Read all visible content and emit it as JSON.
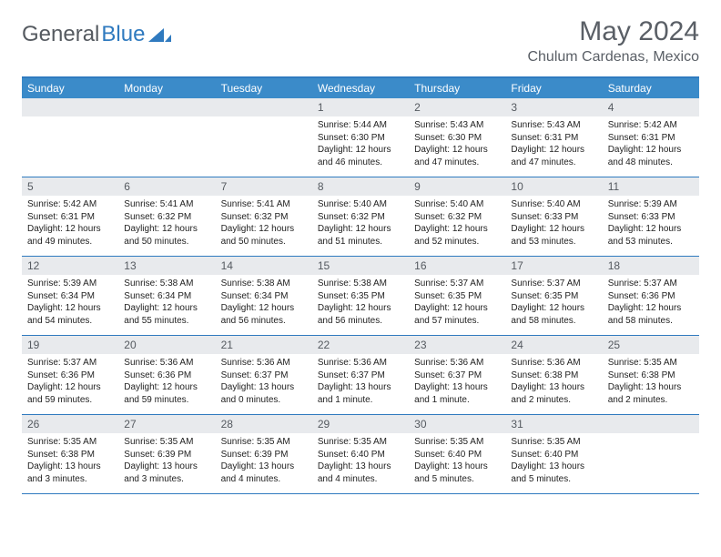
{
  "logo": {
    "word1": "General",
    "word2": "Blue"
  },
  "header": {
    "month_title": "May 2024",
    "location": "Chulum Cardenas, Mexico"
  },
  "colors": {
    "brand_blue": "#2f7abf",
    "header_bar": "#3b8bc9",
    "daynum_bg": "#e8eaed",
    "text_grey": "#5a5f66"
  },
  "days_of_week": [
    "Sunday",
    "Monday",
    "Tuesday",
    "Wednesday",
    "Thursday",
    "Friday",
    "Saturday"
  ],
  "weeks": [
    [
      null,
      null,
      null,
      {
        "n": "1",
        "sunrise": "5:44 AM",
        "sunset": "6:30 PM",
        "daylight": "12 hours and 46 minutes."
      },
      {
        "n": "2",
        "sunrise": "5:43 AM",
        "sunset": "6:30 PM",
        "daylight": "12 hours and 47 minutes."
      },
      {
        "n": "3",
        "sunrise": "5:43 AM",
        "sunset": "6:31 PM",
        "daylight": "12 hours and 47 minutes."
      },
      {
        "n": "4",
        "sunrise": "5:42 AM",
        "sunset": "6:31 PM",
        "daylight": "12 hours and 48 minutes."
      }
    ],
    [
      {
        "n": "5",
        "sunrise": "5:42 AM",
        "sunset": "6:31 PM",
        "daylight": "12 hours and 49 minutes."
      },
      {
        "n": "6",
        "sunrise": "5:41 AM",
        "sunset": "6:32 PM",
        "daylight": "12 hours and 50 minutes."
      },
      {
        "n": "7",
        "sunrise": "5:41 AM",
        "sunset": "6:32 PM",
        "daylight": "12 hours and 50 minutes."
      },
      {
        "n": "8",
        "sunrise": "5:40 AM",
        "sunset": "6:32 PM",
        "daylight": "12 hours and 51 minutes."
      },
      {
        "n": "9",
        "sunrise": "5:40 AM",
        "sunset": "6:32 PM",
        "daylight": "12 hours and 52 minutes."
      },
      {
        "n": "10",
        "sunrise": "5:40 AM",
        "sunset": "6:33 PM",
        "daylight": "12 hours and 53 minutes."
      },
      {
        "n": "11",
        "sunrise": "5:39 AM",
        "sunset": "6:33 PM",
        "daylight": "12 hours and 53 minutes."
      }
    ],
    [
      {
        "n": "12",
        "sunrise": "5:39 AM",
        "sunset": "6:34 PM",
        "daylight": "12 hours and 54 minutes."
      },
      {
        "n": "13",
        "sunrise": "5:38 AM",
        "sunset": "6:34 PM",
        "daylight": "12 hours and 55 minutes."
      },
      {
        "n": "14",
        "sunrise": "5:38 AM",
        "sunset": "6:34 PM",
        "daylight": "12 hours and 56 minutes."
      },
      {
        "n": "15",
        "sunrise": "5:38 AM",
        "sunset": "6:35 PM",
        "daylight": "12 hours and 56 minutes."
      },
      {
        "n": "16",
        "sunrise": "5:37 AM",
        "sunset": "6:35 PM",
        "daylight": "12 hours and 57 minutes."
      },
      {
        "n": "17",
        "sunrise": "5:37 AM",
        "sunset": "6:35 PM",
        "daylight": "12 hours and 58 minutes."
      },
      {
        "n": "18",
        "sunrise": "5:37 AM",
        "sunset": "6:36 PM",
        "daylight": "12 hours and 58 minutes."
      }
    ],
    [
      {
        "n": "19",
        "sunrise": "5:37 AM",
        "sunset": "6:36 PM",
        "daylight": "12 hours and 59 minutes."
      },
      {
        "n": "20",
        "sunrise": "5:36 AM",
        "sunset": "6:36 PM",
        "daylight": "12 hours and 59 minutes."
      },
      {
        "n": "21",
        "sunrise": "5:36 AM",
        "sunset": "6:37 PM",
        "daylight": "13 hours and 0 minutes."
      },
      {
        "n": "22",
        "sunrise": "5:36 AM",
        "sunset": "6:37 PM",
        "daylight": "13 hours and 1 minute."
      },
      {
        "n": "23",
        "sunrise": "5:36 AM",
        "sunset": "6:37 PM",
        "daylight": "13 hours and 1 minute."
      },
      {
        "n": "24",
        "sunrise": "5:36 AM",
        "sunset": "6:38 PM",
        "daylight": "13 hours and 2 minutes."
      },
      {
        "n": "25",
        "sunrise": "5:35 AM",
        "sunset": "6:38 PM",
        "daylight": "13 hours and 2 minutes."
      }
    ],
    [
      {
        "n": "26",
        "sunrise": "5:35 AM",
        "sunset": "6:38 PM",
        "daylight": "13 hours and 3 minutes."
      },
      {
        "n": "27",
        "sunrise": "5:35 AM",
        "sunset": "6:39 PM",
        "daylight": "13 hours and 3 minutes."
      },
      {
        "n": "28",
        "sunrise": "5:35 AM",
        "sunset": "6:39 PM",
        "daylight": "13 hours and 4 minutes."
      },
      {
        "n": "29",
        "sunrise": "5:35 AM",
        "sunset": "6:40 PM",
        "daylight": "13 hours and 4 minutes."
      },
      {
        "n": "30",
        "sunrise": "5:35 AM",
        "sunset": "6:40 PM",
        "daylight": "13 hours and 5 minutes."
      },
      {
        "n": "31",
        "sunrise": "5:35 AM",
        "sunset": "6:40 PM",
        "daylight": "13 hours and 5 minutes."
      },
      null
    ]
  ],
  "labels": {
    "sunrise_prefix": "Sunrise: ",
    "sunset_prefix": "Sunset: ",
    "daylight_prefix": "Daylight: "
  }
}
